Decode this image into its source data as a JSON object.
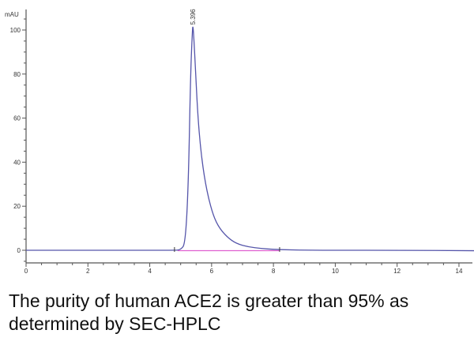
{
  "chart_data": {
    "type": "line",
    "title": "",
    "xlabel": "",
    "ylabel": "mAU",
    "xlim": [
      0,
      14.5
    ],
    "ylim": [
      -6,
      108
    ],
    "x_ticks": [
      0,
      2,
      4,
      6,
      8,
      10,
      12,
      14
    ],
    "y_ticks": [
      0,
      20,
      40,
      60,
      80,
      100
    ],
    "grid": false,
    "legend": null,
    "series": [
      {
        "name": "UV signal",
        "color": "#5555aa",
        "peak": {
          "retention_time": 5.396,
          "height": 102,
          "label": "5.396"
        },
        "x": [
          0,
          2.5,
          4.8,
          5.0,
          5.15,
          5.25,
          5.32,
          5.38,
          5.396,
          5.42,
          5.48,
          5.55,
          5.65,
          5.8,
          6.0,
          6.2,
          6.5,
          6.8,
          7.2,
          7.6,
          8.0,
          8.5,
          9.2,
          10,
          12,
          14.5
        ],
        "y": [
          0,
          0,
          0,
          0.2,
          3,
          30,
          80,
          100,
          102,
          98,
          82,
          62,
          45,
          30,
          18,
          11,
          6,
          3,
          1.5,
          0.8,
          0.4,
          0.2,
          0,
          0,
          0,
          -0.2
        ]
      },
      {
        "name": "Baseline",
        "color": "#e060d0",
        "x": [
          4.9,
          8.2
        ],
        "y": [
          0,
          0
        ]
      }
    ],
    "annotations": [
      {
        "text": "5.396",
        "x": 5.396,
        "y": 102,
        "rotation": 90
      }
    ],
    "integration_markers": [
      4.8,
      8.2
    ]
  },
  "axis": {
    "y_unit": "mAU",
    "y_tick_labels": [
      "0",
      "20",
      "40",
      "60",
      "80",
      "100"
    ],
    "x_tick_labels": [
      "0",
      "2",
      "4",
      "6",
      "8",
      "10",
      "12",
      "14"
    ]
  },
  "peak_label": "5.396",
  "caption": {
    "line1": "The purity of human ACE2 is greater than 95% as",
    "line2": "determined by SEC-HPLC"
  }
}
